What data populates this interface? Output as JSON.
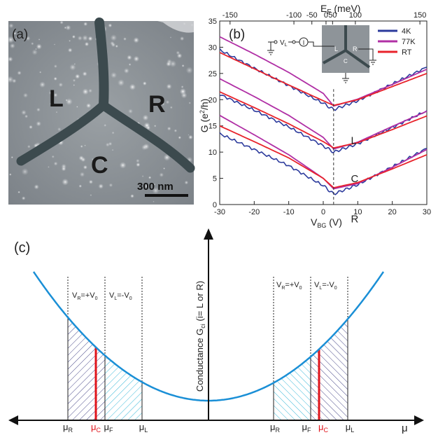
{
  "panel_a": {
    "label": "(a)",
    "contacts": [
      "L",
      "R",
      "C"
    ],
    "scale_bar": "300 nm"
  },
  "panel_b": {
    "label": "(b)",
    "inset": {
      "source": "V",
      "source_sub": "L",
      "meter": "I",
      "terminals": [
        "L",
        "R",
        "C"
      ]
    }
  },
  "panel_c": {
    "label": "(c)",
    "ylabel_main": "Conductance G",
    "ylabel_sub": "ci",
    "ylabel_tail": " (i= L or R)",
    "xlabel": "μ",
    "left_bias": [
      {
        "sub": "R",
        "text": "=+V",
        "sub2": "0"
      },
      {
        "sub": "L",
        "text": "=-V",
        "sub2": "0"
      }
    ],
    "right_bias": [
      {
        "sub": "R",
        "text": "=+V",
        "sub2": "0"
      },
      {
        "sub": "L",
        "text": "=-V",
        "sub2": "0"
      }
    ],
    "left_ticks": [
      "R",
      "C",
      "F",
      "L"
    ],
    "right_ticks": [
      "R",
      "F",
      "C",
      "L"
    ],
    "colors": {
      "curve": "#1a8fd6",
      "mu_c": "#e0141b",
      "hatch_dark": "#4a4a8a",
      "hatch_light": "#39b8d8"
    }
  },
  "chart_data": [
    {
      "type": "line",
      "panel": "(b)",
      "xlabel": "V_BG (V)",
      "ylabel": "G (e²/h)",
      "top_xlabel": "E_F (meV)",
      "xlim": [
        -30,
        30
      ],
      "ylim": [
        0,
        35
      ],
      "xticks": [
        -30,
        -20,
        -10,
        0,
        10,
        20,
        30
      ],
      "yticks": [
        0,
        5,
        10,
        15,
        20,
        25,
        30,
        35
      ],
      "top_ticks": [
        {
          "v": -27,
          "label": "-150"
        },
        {
          "v": -8.5,
          "label": "-100"
        },
        {
          "v": -3.3,
          "label": "-50"
        },
        {
          "v": 0.8,
          "label": "0"
        },
        {
          "v": 2.7,
          "label": "50"
        },
        {
          "v": 9.3,
          "label": "100"
        },
        {
          "v": 28,
          "label": "150"
        }
      ],
      "dirac_point": 3,
      "legend": [
        {
          "name": "4K",
          "color": "#2b3a9c"
        },
        {
          "name": "77K",
          "color": "#b02fa5"
        },
        {
          "name": "RT",
          "color": "#e8232b"
        }
      ],
      "series": [
        {
          "name": "L",
          "curve": "4K",
          "x": [
            -30,
            -20,
            -10,
            0,
            3,
            10,
            20,
            30
          ],
          "y": [
            29.5,
            26.0,
            22.7,
            19.3,
            18.1,
            19.8,
            23.0,
            26.2
          ]
        },
        {
          "name": "L",
          "curve": "77K",
          "x": [
            -30,
            -20,
            -10,
            0,
            3,
            10,
            20,
            30
          ],
          "y": [
            32.0,
            28.7,
            25.2,
            21.2,
            18.8,
            20.1,
            22.9,
            25.8
          ]
        },
        {
          "name": "L",
          "curve": "RT",
          "x": [
            -30,
            -20,
            -10,
            0,
            3,
            10,
            20,
            30
          ],
          "y": [
            29.0,
            25.9,
            22.8,
            19.8,
            18.9,
            20.0,
            22.5,
            25.0
          ]
        },
        {
          "name": "C",
          "curve": "4K",
          "x": [
            -30,
            -20,
            -10,
            0,
            3,
            10,
            20,
            30
          ],
          "y": [
            21.0,
            18.0,
            14.8,
            11.2,
            10.0,
            11.6,
            14.7,
            17.9
          ]
        },
        {
          "name": "C",
          "curve": "77K",
          "x": [
            -30,
            -20,
            -10,
            0,
            3,
            10,
            20,
            30
          ],
          "y": [
            24.0,
            20.6,
            17.0,
            12.8,
            10.6,
            11.9,
            14.9,
            17.8
          ]
        },
        {
          "name": "C",
          "curve": "RT",
          "x": [
            -30,
            -20,
            -10,
            0,
            3,
            10,
            20,
            30
          ],
          "y": [
            21.5,
            18.5,
            15.4,
            12.0,
            10.8,
            11.8,
            14.3,
            16.9
          ]
        },
        {
          "name": "R",
          "curve": "4K",
          "x": [
            -30,
            -20,
            -10,
            0,
            3,
            10,
            20,
            30
          ],
          "y": [
            13.5,
            10.5,
            7.4,
            3.6,
            2.0,
            3.8,
            7.2,
            10.7
          ]
        },
        {
          "name": "R",
          "curve": "77K",
          "x": [
            -30,
            -20,
            -10,
            0,
            3,
            10,
            20,
            30
          ],
          "y": [
            17.0,
            13.3,
            9.5,
            5.0,
            3.0,
            4.0,
            7.1,
            10.5
          ]
        },
        {
          "name": "R",
          "curve": "RT",
          "x": [
            -30,
            -20,
            -10,
            0,
            3,
            10,
            20,
            30
          ],
          "y": [
            15.0,
            12.0,
            8.9,
            5.0,
            3.2,
            4.2,
            6.8,
            9.5
          ]
        }
      ],
      "curve_labels": [
        "L",
        "C",
        "R"
      ]
    }
  ]
}
